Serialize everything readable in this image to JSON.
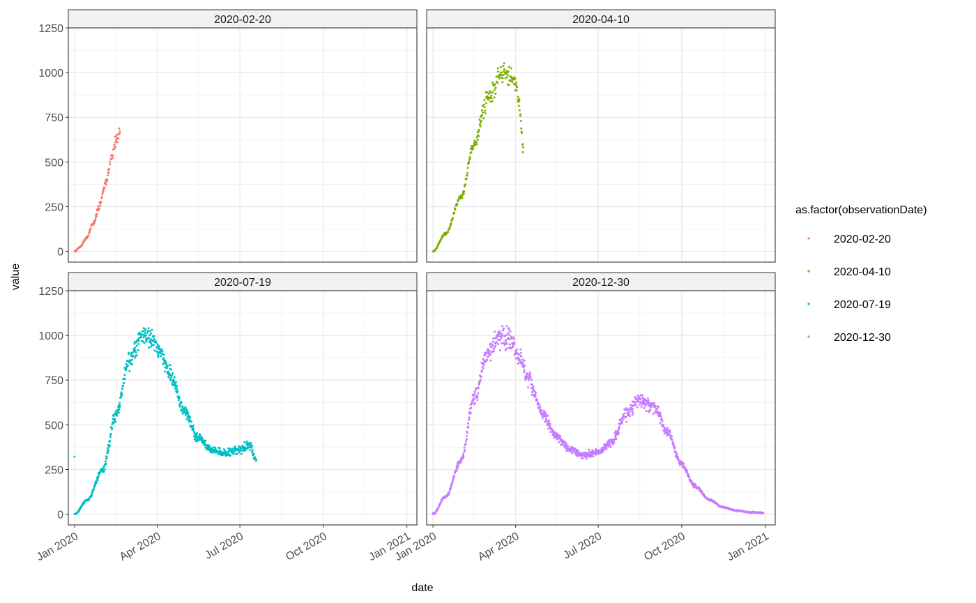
{
  "chart_data": [
    {
      "type": "scatter",
      "panel": "2020-02-20",
      "strip_label": "2020-02-20",
      "color": "#F8766D",
      "series_name": "2020-02-20",
      "x_range": [
        "2020-01-01",
        "2020-02-20"
      ],
      "knots": [
        [
          "2020-01-01",
          0
        ],
        [
          "2020-01-07",
          25
        ],
        [
          "2020-01-14",
          75
        ],
        [
          "2020-01-21",
          150
        ],
        [
          "2020-01-28",
          250
        ],
        [
          "2020-02-04",
          380
        ],
        [
          "2020-02-11",
          530
        ],
        [
          "2020-02-17",
          650
        ],
        [
          "2020-02-20",
          650
        ]
      ],
      "point_spacing_days": 0.4,
      "noise": 0.06
    },
    {
      "type": "scatter",
      "panel": "2020-04-10",
      "strip_label": "2020-04-10",
      "color": "#7CAE00",
      "series_name": "2020-04-10",
      "x_range": [
        "2020-01-01",
        "2020-04-10"
      ],
      "knots": [
        [
          "2020-01-01",
          0
        ],
        [
          "2020-01-15",
          100
        ],
        [
          "2020-02-01",
          300
        ],
        [
          "2020-02-15",
          600
        ],
        [
          "2020-03-01",
          850
        ],
        [
          "2020-03-15",
          990
        ],
        [
          "2020-03-25",
          1000
        ],
        [
          "2020-04-01",
          920
        ],
        [
          "2020-04-05",
          820
        ],
        [
          "2020-04-10",
          550
        ]
      ],
      "point_spacing_days": 0.4,
      "noise": 0.06
    },
    {
      "type": "scatter",
      "panel": "2020-07-19",
      "strip_label": "2020-07-19",
      "color": "#00BFC4",
      "series_name": "2020-07-19",
      "x_range": [
        "2020-01-01",
        "2020-07-19"
      ],
      "knots": [
        [
          "2020-01-01",
          0
        ],
        [
          "2020-01-15",
          80
        ],
        [
          "2020-02-01",
          250
        ],
        [
          "2020-02-15",
          550
        ],
        [
          "2020-03-01",
          850
        ],
        [
          "2020-03-15",
          1000
        ],
        [
          "2020-03-25",
          990
        ],
        [
          "2020-04-05",
          900
        ],
        [
          "2020-04-15",
          780
        ],
        [
          "2020-05-01",
          580
        ],
        [
          "2020-05-15",
          430
        ],
        [
          "2020-06-01",
          360
        ],
        [
          "2020-06-15",
          340
        ],
        [
          "2020-07-01",
          360
        ],
        [
          "2020-07-12",
          390
        ],
        [
          "2020-07-19",
          300
        ]
      ],
      "point_spacing_days": 0.3,
      "noise": 0.06
    },
    {
      "type": "scatter",
      "panel": "2020-12-30",
      "strip_label": "2020-12-30",
      "color": "#C77CFF",
      "series_name": "2020-12-30",
      "x_range": [
        "2020-01-01",
        "2020-12-30"
      ],
      "knots": [
        [
          "2020-01-01",
          0
        ],
        [
          "2020-01-15",
          100
        ],
        [
          "2020-02-01",
          300
        ],
        [
          "2020-02-15",
          650
        ],
        [
          "2020-03-01",
          900
        ],
        [
          "2020-03-15",
          1000
        ],
        [
          "2020-03-25",
          980
        ],
        [
          "2020-04-05",
          880
        ],
        [
          "2020-04-15",
          750
        ],
        [
          "2020-05-01",
          560
        ],
        [
          "2020-05-15",
          440
        ],
        [
          "2020-06-01",
          360
        ],
        [
          "2020-06-15",
          330
        ],
        [
          "2020-07-01",
          350
        ],
        [
          "2020-07-15",
          400
        ],
        [
          "2020-08-01",
          560
        ],
        [
          "2020-08-15",
          640
        ],
        [
          "2020-09-01",
          600
        ],
        [
          "2020-09-15",
          460
        ],
        [
          "2020-10-01",
          280
        ],
        [
          "2020-10-15",
          160
        ],
        [
          "2020-11-01",
          80
        ],
        [
          "2020-11-15",
          40
        ],
        [
          "2020-12-01",
          20
        ],
        [
          "2020-12-15",
          10
        ],
        [
          "2020-12-30",
          8
        ]
      ],
      "point_spacing_days": 0.3,
      "noise": 0.06
    }
  ],
  "axes": {
    "x_label": "date",
    "y_label": "value",
    "x_domain": [
      "2019-12-25",
      "2021-01-12"
    ],
    "y_domain": [
      -60,
      1250
    ],
    "x_ticks": [
      {
        "date": "2020-01-01",
        "label": "Jan 2020"
      },
      {
        "date": "2020-04-01",
        "label": "Apr 2020"
      },
      {
        "date": "2020-07-01",
        "label": "Jul 2020"
      },
      {
        "date": "2020-10-01",
        "label": "Oct 2020"
      },
      {
        "date": "2021-01-01",
        "label": "Jan 2021"
      }
    ],
    "x_minor": [
      "2020-02-15",
      "2020-05-16",
      "2020-08-16",
      "2020-11-16"
    ],
    "y_ticks": [
      0,
      250,
      500,
      750,
      1000,
      1250
    ],
    "y_minor": [
      125,
      375,
      625,
      875,
      1125
    ],
    "grid": true
  },
  "legend": {
    "title": "as.factor(observationDate)",
    "placement": "right",
    "items": [
      {
        "label": "2020-02-20",
        "color": "#F8766D"
      },
      {
        "label": "2020-04-10",
        "color": "#7CAE00"
      },
      {
        "label": "2020-07-19",
        "color": "#00BFC4"
      },
      {
        "label": "2020-12-30",
        "color": "#C77CFF"
      }
    ]
  }
}
